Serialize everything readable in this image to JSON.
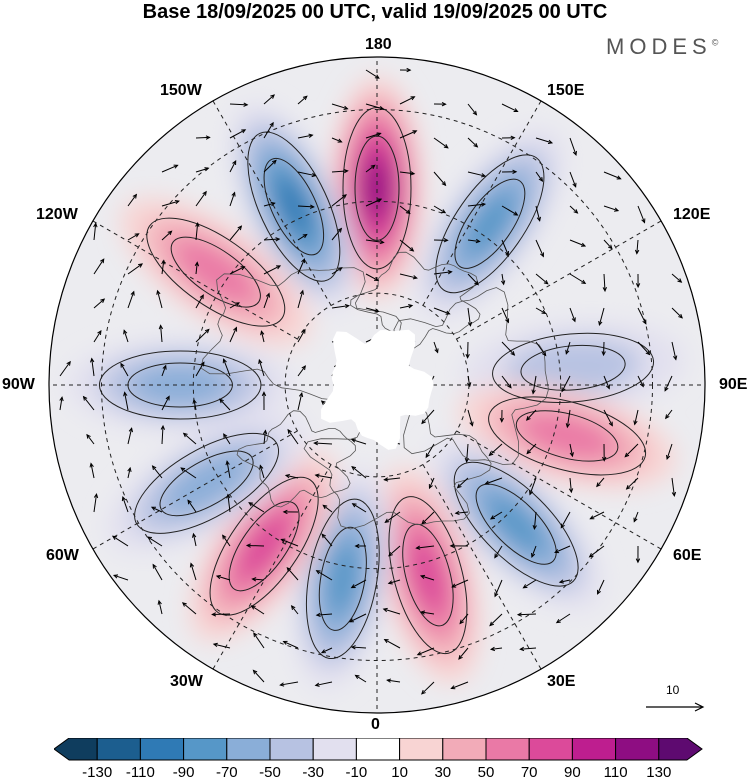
{
  "title": "Base 18/09/2025 00 UTC, valid 19/09/2025 00 UTC",
  "brand": "MODES",
  "brand_mark": "©",
  "map": {
    "projection": "north polar stereographic",
    "longitude_labels": {
      "top": "180",
      "top_right": "150E",
      "upper_right": "120E",
      "right": "90E",
      "lower_right": "60E",
      "bottom_right": "30E",
      "bottom": "0",
      "bottom_left": "30W",
      "lower_left": "60W",
      "left": "90W",
      "upper_left": "120W",
      "top_left": "150W"
    },
    "reference_vector_label": "10",
    "anomaly_centers": [
      {
        "lon": "180E",
        "sign": "positive",
        "strength": 110
      },
      {
        "lon": "155W",
        "sign": "negative",
        "strength": -90
      },
      {
        "lon": "125W",
        "sign": "positive",
        "strength": 50
      },
      {
        "lon": "145E",
        "sign": "negative",
        "strength": -70
      },
      {
        "lon": "95E",
        "sign": "negative",
        "strength": -30
      },
      {
        "lon": "75E",
        "sign": "positive",
        "strength": 50
      },
      {
        "lon": "45E",
        "sign": "negative",
        "strength": -70
      },
      {
        "lon": "15E",
        "sign": "positive",
        "strength": 70
      },
      {
        "lon": "10W",
        "sign": "negative",
        "strength": -70
      },
      {
        "lon": "35W",
        "sign": "positive",
        "strength": 70
      },
      {
        "lon": "60W",
        "sign": "negative",
        "strength": -50
      },
      {
        "lon": "90W",
        "sign": "negative",
        "strength": -50
      }
    ]
  },
  "colorbar": {
    "ticks": [
      "-130",
      "-110",
      "-90",
      "-70",
      "-50",
      "-30",
      "-10",
      "10",
      "30",
      "50",
      "70",
      "90",
      "110",
      "130"
    ],
    "colors": [
      "#0f3d5e",
      "#1c5e8f",
      "#2f7ab5",
      "#5697c8",
      "#8aaed8",
      "#b7c2e2",
      "#e2e0ef",
      "#ffffff",
      "#f8d4d3",
      "#f2abb8",
      "#ea79a6",
      "#dc4a9a",
      "#be1e8f",
      "#8e0d82",
      "#5e0a70"
    ]
  }
}
